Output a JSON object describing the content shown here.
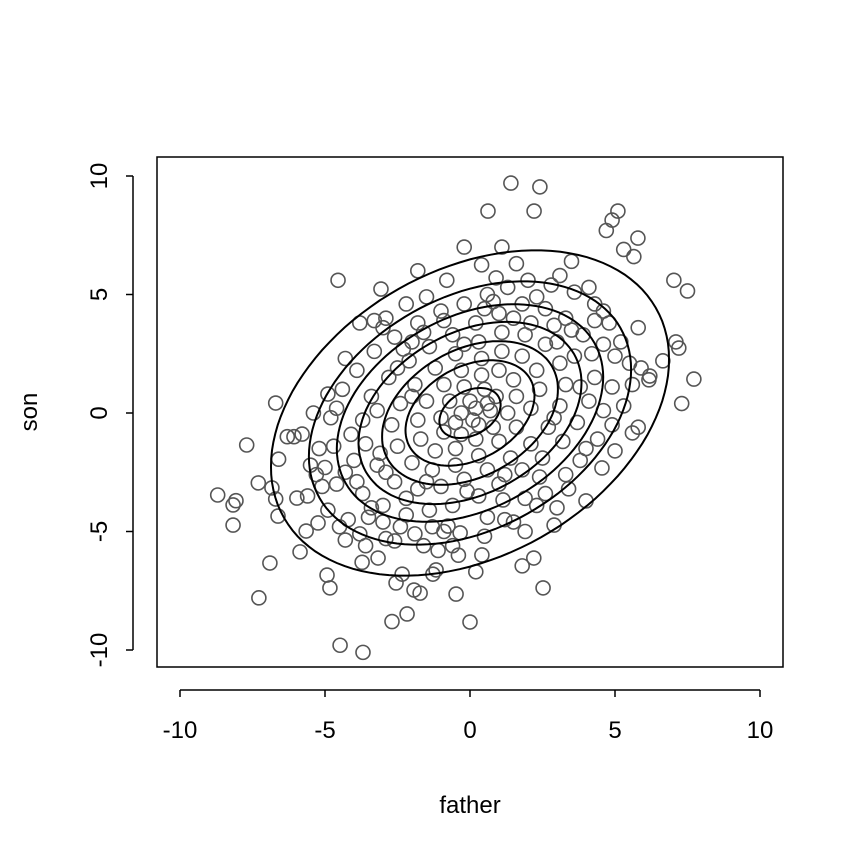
{
  "chart_data": {
    "type": "scatter",
    "title": "",
    "xlabel": "father",
    "ylabel": "son",
    "xlim": [
      -10.8,
      10.8
    ],
    "ylim": [
      -10.8,
      10.8
    ],
    "xticks": [
      "-10",
      "-5",
      "0",
      "5",
      "10"
    ],
    "yticks": [
      "-10",
      "-5",
      "0",
      "5",
      "10"
    ],
    "grid": false,
    "point_color": "#555555",
    "contour_color": "#000000",
    "contour": {
      "type": "bivariate-normal-density",
      "mean": [
        0,
        0
      ],
      "sd": [
        3,
        3
      ],
      "rho": 0.33,
      "levels_relative_to_peak": [
        0.073,
        0.18,
        0.31,
        0.44,
        0.6,
        0.76,
        0.94
      ]
    },
    "points": [
      [
        1.41,
        9.7
      ],
      [
        2.41,
        9.54
      ],
      [
        0.62,
        8.52
      ],
      [
        2.21,
        8.52
      ],
      [
        5.1,
        8.52
      ],
      [
        4.9,
        8.14
      ],
      [
        4.7,
        7.7
      ],
      [
        5.79,
        7.38
      ],
      [
        -0.2,
        7.0
      ],
      [
        1.1,
        7.0
      ],
      [
        5.3,
        6.9
      ],
      [
        5.65,
        6.6
      ],
      [
        7.03,
        5.6
      ],
      [
        7.5,
        5.15
      ],
      [
        -4.55,
        5.6
      ],
      [
        -3.07,
        5.23
      ],
      [
        -1.8,
        6.0
      ],
      [
        3.5,
        6.4
      ],
      [
        0.4,
        6.25
      ],
      [
        7.1,
        3.0
      ],
      [
        7.2,
        2.74
      ],
      [
        6.65,
        2.2
      ],
      [
        6.2,
        1.56
      ],
      [
        6.17,
        1.4
      ],
      [
        7.72,
        1.43
      ],
      [
        7.3,
        0.4
      ],
      [
        -6.7,
        0.42
      ],
      [
        -7.7,
        -1.35
      ],
      [
        -6.3,
        -1.0
      ],
      [
        -6.6,
        -1.95
      ],
      [
        -8.7,
        -3.46
      ],
      [
        -8.07,
        -3.7
      ],
      [
        -8.17,
        -3.88
      ],
      [
        -7.3,
        -2.95
      ],
      [
        -8.17,
        -4.73
      ],
      [
        -6.83,
        -3.16
      ],
      [
        -6.7,
        -3.63
      ],
      [
        -6.62,
        -4.35
      ],
      [
        -6.9,
        -6.33
      ],
      [
        -7.28,
        -7.8
      ],
      [
        -4.93,
        -6.84
      ],
      [
        -4.83,
        -7.38
      ],
      [
        -4.48,
        -9.8
      ],
      [
        -3.69,
        -10.1
      ],
      [
        -2.69,
        -8.8
      ],
      [
        -2.17,
        -8.48
      ],
      [
        -1.72,
        -7.6
      ],
      [
        -1.28,
        -6.8
      ],
      [
        -0.48,
        -7.64
      ],
      [
        0.0,
        -8.82
      ],
      [
        0.2,
        -6.7
      ],
      [
        1.8,
        -6.45
      ],
      [
        2.2,
        -6.12
      ],
      [
        2.52,
        -7.38
      ],
      [
        2.9,
        -4.73
      ],
      [
        4.0,
        -3.71
      ],
      [
        4.55,
        -2.32
      ],
      [
        5.6,
        -0.84
      ],
      [
        -3.72,
        -6.3
      ],
      [
        -3.17,
        -6.12
      ],
      [
        -4.3,
        -5.36
      ],
      [
        -5.86,
        -5.86
      ],
      [
        -5.65,
        -4.98
      ],
      [
        -5.24,
        -4.64
      ],
      [
        -2.34,
        -6.8
      ],
      [
        -2.55,
        -7.17
      ],
      [
        -1.93,
        -7.47
      ],
      [
        -1.17,
        -6.62
      ],
      [
        0.41,
        -5.99
      ],
      [
        1.14,
        -3.67
      ],
      [
        -0.34,
        -5.06
      ],
      [
        -0.76,
        -4.77
      ],
      [
        -5.79,
        -0.89
      ],
      [
        -5.97,
        -3.59
      ],
      [
        -6.07,
        -1.0
      ],
      [
        -5.5,
        -2.2
      ],
      [
        -5.2,
        -1.5
      ],
      [
        -4.9,
        0.8
      ],
      [
        -4.6,
        0.2
      ],
      [
        -5.1,
        -3.1
      ],
      [
        -4.2,
        -4.5
      ],
      [
        -3.8,
        -5.1
      ],
      [
        -3.0,
        -4.6
      ],
      [
        -2.6,
        -5.4
      ],
      [
        -1.9,
        -5.1
      ],
      [
        -1.3,
        -4.8
      ],
      [
        -0.6,
        -5.6
      ],
      [
        0.5,
        -5.2
      ],
      [
        1.2,
        -4.5
      ],
      [
        1.9,
        -3.6
      ],
      [
        2.6,
        -3.4
      ],
      [
        3.3,
        -2.6
      ],
      [
        3.8,
        -2.0
      ],
      [
        4.4,
        -1.1
      ],
      [
        4.9,
        -0.5
      ],
      [
        5.3,
        0.3
      ],
      [
        5.6,
        1.2
      ],
      [
        5.5,
        2.1
      ],
      [
        5.2,
        3.0
      ],
      [
        4.8,
        3.8
      ],
      [
        4.3,
        4.6
      ],
      [
        3.6,
        5.1
      ],
      [
        2.8,
        5.4
      ],
      [
        2.0,
        5.6
      ],
      [
        1.3,
        5.3
      ],
      [
        0.6,
        5.0
      ],
      [
        -0.2,
        4.6
      ],
      [
        -1.0,
        4.3
      ],
      [
        -1.8,
        3.8
      ],
      [
        -2.6,
        3.2
      ],
      [
        -3.3,
        2.6
      ],
      [
        -3.9,
        1.8
      ],
      [
        -4.4,
        1.0
      ],
      [
        -4.8,
        -0.2
      ],
      [
        -4.7,
        -1.4
      ],
      [
        -4.3,
        -2.5
      ],
      [
        -3.7,
        -3.4
      ],
      [
        -3.0,
        -3.9
      ],
      [
        -2.2,
        -4.3
      ],
      [
        -1.4,
        -4.1
      ],
      [
        -0.6,
        -3.9
      ],
      [
        0.3,
        -3.5
      ],
      [
        1.0,
        -3.0
      ],
      [
        1.8,
        -2.4
      ],
      [
        2.5,
        -1.9
      ],
      [
        3.2,
        -1.2
      ],
      [
        3.7,
        -0.4
      ],
      [
        4.1,
        0.5
      ],
      [
        4.3,
        1.5
      ],
      [
        4.2,
        2.5
      ],
      [
        3.9,
        3.3
      ],
      [
        3.3,
        4.0
      ],
      [
        2.6,
        4.4
      ],
      [
        1.8,
        4.6
      ],
      [
        1.0,
        4.2
      ],
      [
        0.2,
        3.8
      ],
      [
        -0.6,
        3.3
      ],
      [
        -1.4,
        2.8
      ],
      [
        -2.1,
        2.2
      ],
      [
        -2.8,
        1.5
      ],
      [
        -3.4,
        0.7
      ],
      [
        -3.7,
        -0.3
      ],
      [
        -3.6,
        -1.3
      ],
      [
        -3.2,
        -2.2
      ],
      [
        -2.6,
        -2.9
      ],
      [
        -1.8,
        -3.2
      ],
      [
        -1.0,
        -3.1
      ],
      [
        -0.2,
        -2.8
      ],
      [
        0.6,
        -2.4
      ],
      [
        1.4,
        -1.9
      ],
      [
        2.1,
        -1.3
      ],
      [
        2.7,
        -0.6
      ],
      [
        3.1,
        0.3
      ],
      [
        3.3,
        1.2
      ],
      [
        3.1,
        2.1
      ],
      [
        2.6,
        2.9
      ],
      [
        1.9,
        3.3
      ],
      [
        1.1,
        3.4
      ],
      [
        0.3,
        3.0
      ],
      [
        -0.5,
        2.5
      ],
      [
        -1.2,
        1.9
      ],
      [
        -1.9,
        1.2
      ],
      [
        -2.4,
        0.4
      ],
      [
        -2.7,
        -0.5
      ],
      [
        -2.5,
        -1.4
      ],
      [
        -2.0,
        -2.1
      ],
      [
        -1.3,
        -2.4
      ],
      [
        -0.5,
        -2.2
      ],
      [
        0.3,
        -1.8
      ],
      [
        1.0,
        -1.2
      ],
      [
        1.6,
        -0.6
      ],
      [
        2.1,
        0.2
      ],
      [
        2.4,
        1.0
      ],
      [
        2.3,
        1.8
      ],
      [
        1.8,
        2.4
      ],
      [
        1.1,
        2.6
      ],
      [
        0.4,
        2.3
      ],
      [
        -0.3,
        1.8
      ],
      [
        -0.9,
        1.2
      ],
      [
        -1.5,
        0.5
      ],
      [
        -1.8,
        -0.3
      ],
      [
        -1.7,
        -1.1
      ],
      [
        -1.2,
        -1.6
      ],
      [
        -0.5,
        -1.5
      ],
      [
        0.2,
        -1.1
      ],
      [
        0.8,
        -0.6
      ],
      [
        1.3,
        0.0
      ],
      [
        1.6,
        0.7
      ],
      [
        1.5,
        1.4
      ],
      [
        1.0,
        1.8
      ],
      [
        0.4,
        1.6
      ],
      [
        -0.2,
        1.1
      ],
      [
        -0.7,
        0.5
      ],
      [
        -1.0,
        -0.2
      ],
      [
        -0.9,
        -0.8
      ],
      [
        -0.3,
        -0.9
      ],
      [
        0.3,
        -0.5
      ],
      [
        0.7,
        0.1
      ],
      [
        0.9,
        0.7
      ],
      [
        0.5,
        1.0
      ],
      [
        0.0,
        0.5
      ],
      [
        -0.3,
        0.0
      ],
      [
        0.2,
        0.2
      ],
      [
        0.1,
        -0.3
      ],
      [
        -0.5,
        -0.4
      ],
      [
        0.6,
        0.4
      ],
      [
        -2.2,
        -3.6
      ],
      [
        -3.1,
        -1.7
      ],
      [
        -4.0,
        -2.0
      ],
      [
        -3.5,
        -4.4
      ],
      [
        -2.0,
        0.7
      ],
      [
        -2.3,
        2.7
      ],
      [
        -3.0,
        3.6
      ],
      [
        -3.8,
        3.8
      ],
      [
        -2.9,
        4.0
      ],
      [
        -1.5,
        4.9
      ],
      [
        -0.8,
        5.6
      ],
      [
        0.9,
        5.7
      ],
      [
        2.3,
        4.9
      ],
      [
        3.0,
        3.0
      ],
      [
        3.6,
        2.4
      ],
      [
        4.6,
        2.9
      ],
      [
        5.0,
        2.4
      ],
      [
        4.9,
        1.1
      ],
      [
        4.6,
        0.1
      ],
      [
        4.0,
        -1.5
      ],
      [
        3.4,
        -3.2
      ],
      [
        2.3,
        -3.9
      ],
      [
        1.5,
        -4.6
      ],
      [
        0.6,
        -4.4
      ],
      [
        -0.9,
        -5.0
      ],
      [
        -1.6,
        -5.6
      ],
      [
        -2.9,
        -5.3
      ],
      [
        -3.4,
        -4.0
      ],
      [
        -4.6,
        -3.0
      ],
      [
        -5.3,
        -2.6
      ],
      [
        -4.1,
        -0.9
      ],
      [
        -3.2,
        0.1
      ],
      [
        -2.5,
        1.9
      ],
      [
        -1.6,
        3.4
      ],
      [
        -0.2,
        2.9
      ],
      [
        0.8,
        4.7
      ],
      [
        2.1,
        3.8
      ],
      [
        2.9,
        3.7
      ],
      [
        3.5,
        3.5
      ],
      [
        4.3,
        3.9
      ],
      [
        3.8,
        1.1
      ],
      [
        2.9,
        -0.2
      ],
      [
        2.4,
        -2.7
      ],
      [
        1.2,
        -2.6
      ],
      [
        -0.1,
        -3.3
      ],
      [
        -1.5,
        -2.9
      ],
      [
        -2.9,
        -2.5
      ],
      [
        -3.9,
        -2.9
      ],
      [
        -4.9,
        -4.1
      ],
      [
        -5.6,
        -3.5
      ],
      [
        -4.3,
        2.3
      ],
      [
        -2.2,
        4.6
      ],
      [
        1.6,
        6.3
      ],
      [
        3.1,
        5.8
      ],
      [
        4.1,
        5.3
      ],
      [
        4.6,
        4.3
      ],
      [
        5.8,
        3.6
      ],
      [
        5.9,
        1.9
      ],
      [
        5.8,
        -0.6
      ],
      [
        5.0,
        -1.6
      ],
      [
        3.0,
        -4.0
      ],
      [
        1.9,
        -5.0
      ],
      [
        -0.4,
        -6.0
      ],
      [
        -1.1,
        -5.8
      ],
      [
        -2.4,
        -4.8
      ],
      [
        -3.6,
        -5.6
      ],
      [
        -4.5,
        -4.8
      ],
      [
        -5.0,
        -2.3
      ],
      [
        -5.4,
        0.0
      ],
      [
        -3.3,
        3.9
      ],
      [
        -2.0,
        3.0
      ],
      [
        -0.9,
        3.9
      ],
      [
        0.5,
        4.4
      ],
      [
        1.5,
        4.0
      ]
    ]
  }
}
